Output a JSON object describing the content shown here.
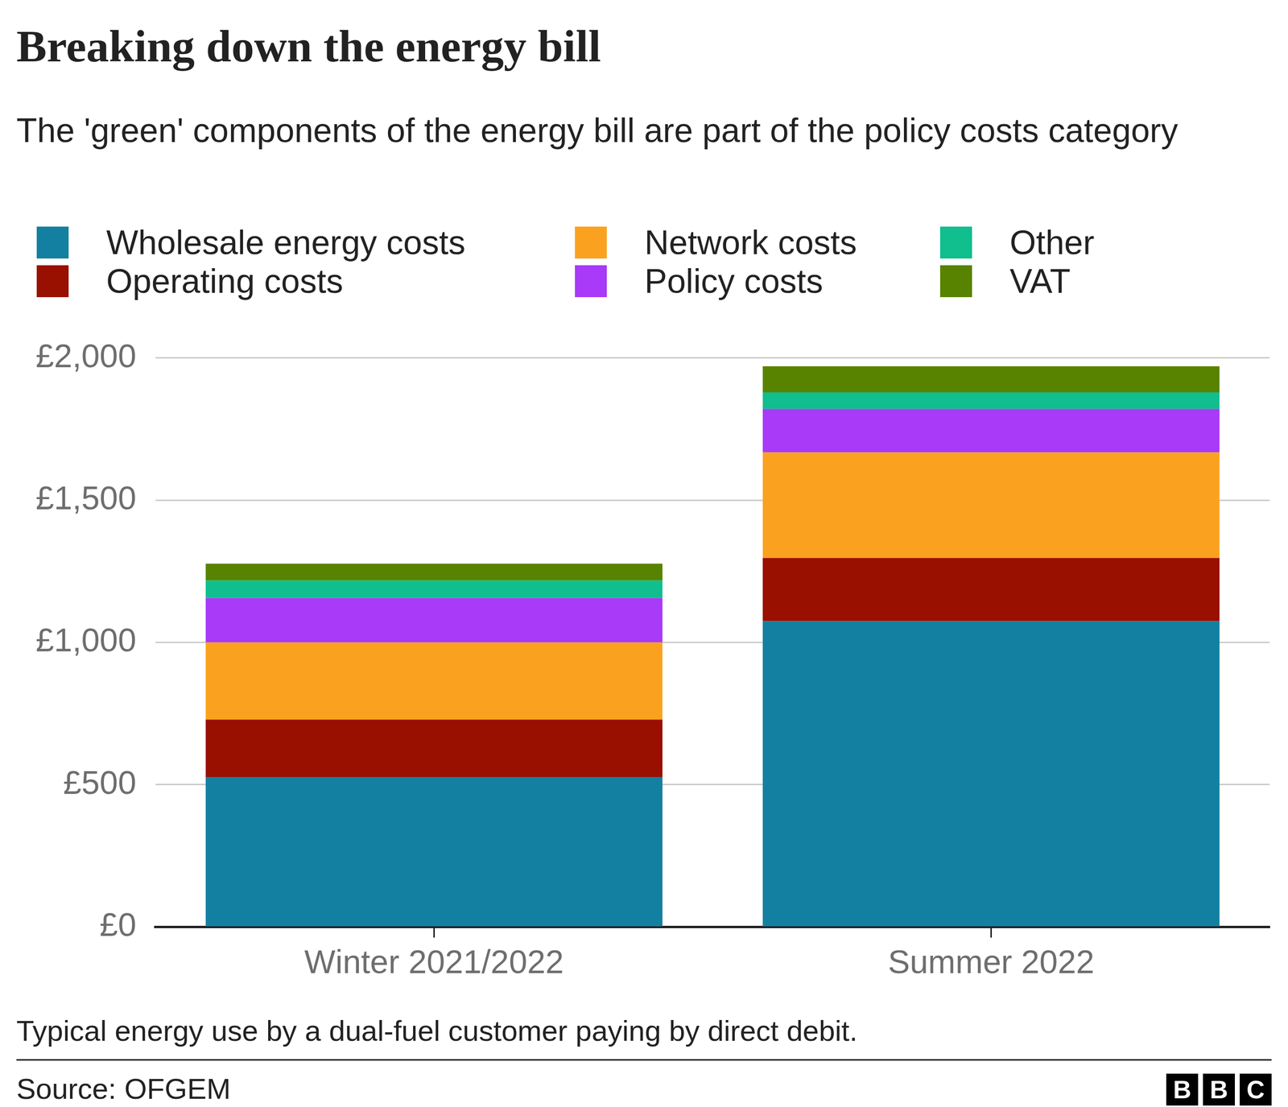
{
  "chart_data": {
    "type": "bar",
    "title": "Breaking down the energy bill",
    "subtitle": "The 'green' components of the energy bill are part of the policy costs category",
    "categories": [
      "Winter 2021/2022",
      "Summer 2022"
    ],
    "series": [
      {
        "name": "Wholesale energy costs",
        "color": "#1380a1",
        "values": [
          527,
          1075
        ]
      },
      {
        "name": "Operating costs",
        "color": "#990f00",
        "values": [
          202,
          222
        ]
      },
      {
        "name": "Network costs",
        "color": "#faa21f",
        "values": [
          271,
          371
        ]
      },
      {
        "name": "Policy costs",
        "color": "#a83af8",
        "values": [
          156,
          153
        ]
      },
      {
        "name": "Other",
        "color": "#10be8e",
        "values": [
          62,
          58
        ]
      },
      {
        "name": "VAT",
        "color": "#588300",
        "values": [
          59,
          92
        ]
      }
    ],
    "ylim": [
      0,
      2000
    ],
    "yticks": [
      {
        "value": 0,
        "label": "£0"
      },
      {
        "value": 500,
        "label": "£500"
      },
      {
        "value": 1000,
        "label": "£1,000"
      },
      {
        "value": 1500,
        "label": "£1,500"
      },
      {
        "value": 2000,
        "label": "£2,000"
      }
    ],
    "grid": true,
    "stacked": true,
    "legend": "top",
    "note": "Typical energy use by a dual-fuel customer paying by direct debit.",
    "source": "Source: OFGEM",
    "logo": "BBC"
  }
}
